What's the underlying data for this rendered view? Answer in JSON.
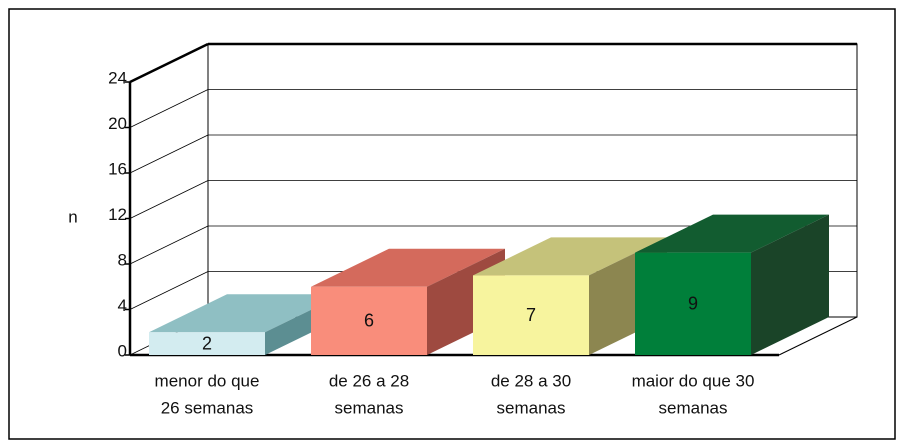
{
  "chart_data": {
    "type": "bar3d",
    "ylabel": "n",
    "categories": [
      [
        "menor do que",
        "26 semanas"
      ],
      [
        "de 26 a 28",
        "semanas"
      ],
      [
        "de 28 a 30",
        "semanas"
      ],
      [
        "maior do que 30",
        "semanas"
      ]
    ],
    "values": [
      2,
      6,
      7,
      9
    ],
    "colors": [
      [
        "#d3ecf0",
        "#8fbfc3",
        "#5c8e92"
      ],
      [
        "#f98d7b",
        "#d46a5c",
        "#9e4a40"
      ],
      [
        "#f7f49e",
        "#c5c27a",
        "#8c8650"
      ],
      [
        "#007f3a",
        "#125c30",
        "#1a4428"
      ]
    ],
    "ylim": [
      0,
      24
    ],
    "yticks": [
      0,
      4,
      8,
      12,
      16,
      20,
      24
    ],
    "grid": true
  }
}
